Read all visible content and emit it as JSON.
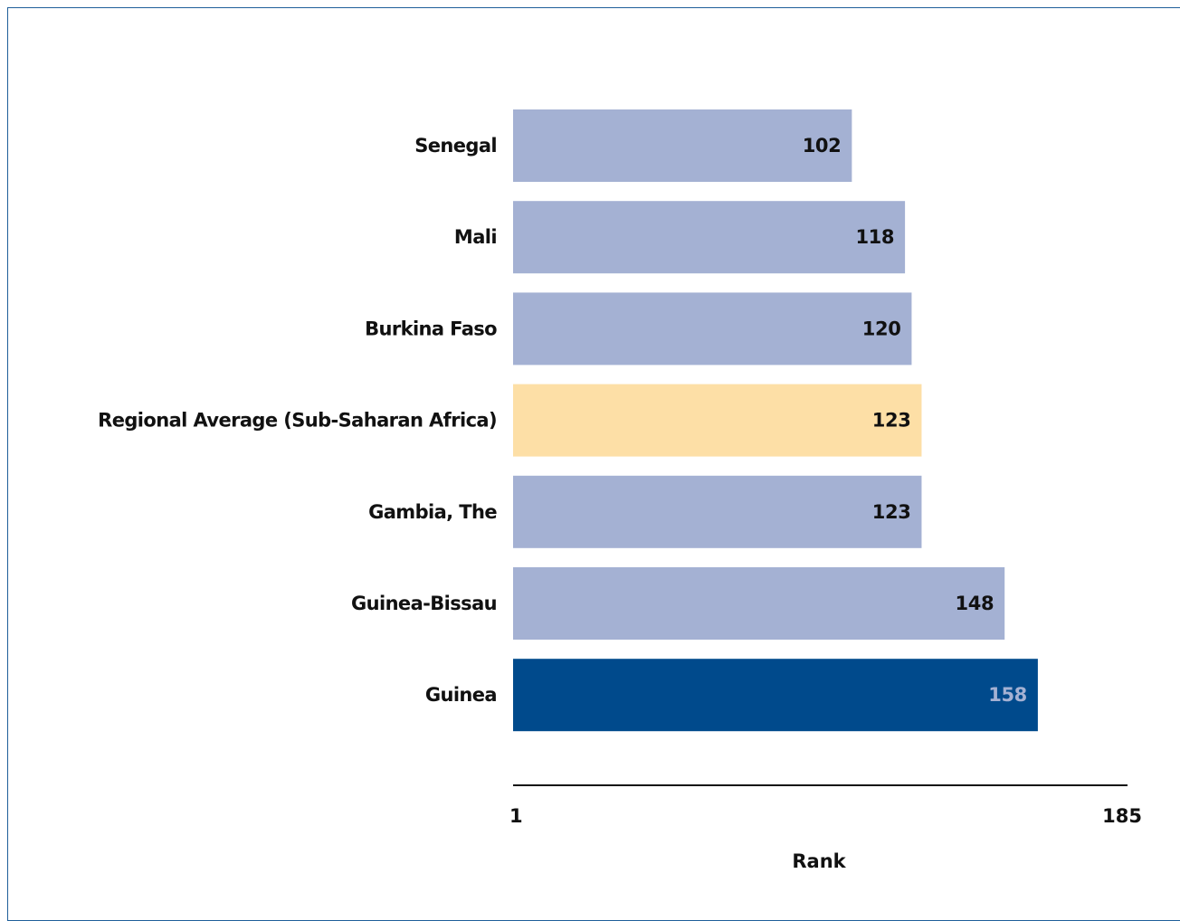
{
  "chart_data": {
    "type": "bar",
    "orientation": "horizontal",
    "title": "",
    "xlabel": "Rank",
    "ylabel": "",
    "xlim": [
      1,
      185
    ],
    "grid": false,
    "categories": [
      "Senegal",
      "Mali",
      "Burkina Faso",
      "Regional Average (Sub-Saharan Africa)",
      "Gambia, The",
      "Guinea-Bissau",
      "Guinea"
    ],
    "values": [
      102,
      118,
      120,
      123,
      123,
      148,
      158
    ],
    "x_ticks": [
      "1",
      "185"
    ],
    "bar_colors": [
      "#a4b1d3",
      "#a4b1d3",
      "#a4b1d3",
      "#fddfa6",
      "#a4b1d3",
      "#a4b1d3",
      "#004a8c"
    ],
    "value_label_colors": [
      "#111111",
      "#111111",
      "#111111",
      "#111111",
      "#111111",
      "#111111",
      "#a4b1d3"
    ],
    "axis_color": "#111111"
  }
}
